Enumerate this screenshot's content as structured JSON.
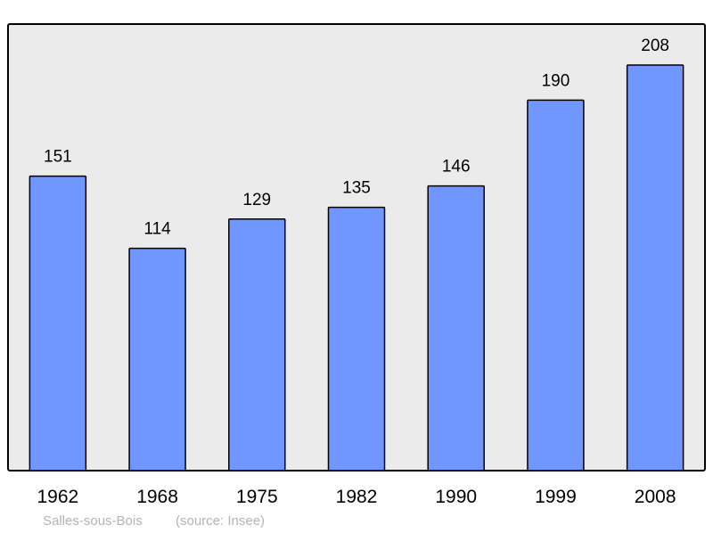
{
  "chart_data": {
    "type": "bar",
    "categories": [
      "1962",
      "1968",
      "1975",
      "1982",
      "1990",
      "1999",
      "2008"
    ],
    "values": [
      151,
      114,
      129,
      135,
      146,
      190,
      208
    ],
    "title": "",
    "xlabel": "",
    "ylabel": "",
    "ylim": [
      0,
      229
    ],
    "grid": false,
    "data_labels": true,
    "colors": {
      "bar": "#7096ff",
      "plot_background": "#ebebeb",
      "outline": "#000000"
    }
  },
  "footer": {
    "place": "Salles-sous-Bois",
    "source": "(source: Insee)"
  }
}
